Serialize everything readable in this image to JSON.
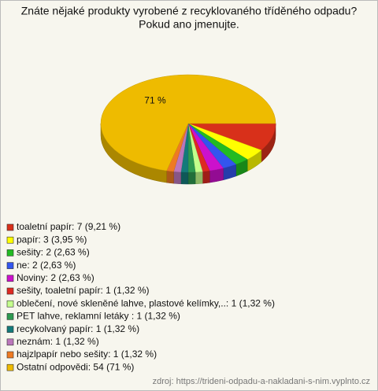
{
  "chart_data": {
    "type": "pie",
    "title": [
      "Znáte nějaké produkty vyrobené z recyklovaného tříděného odpadu?",
      "Pokud ano jmenujte."
    ],
    "categories": [
      "toaletní papír: 7 (9,21 %)",
      "papír: 3 (3,95 %)",
      "sešity: 2 (2,63 %)",
      "ne: 2 (2,63 %)",
      "Noviny: 2 (2,63 %)",
      "sešity, toaletní papír: 1 (1,32 %)",
      "oblečení, nové skleněné lahve, plastové kelímky,..: 1 (1,32 %)",
      "PET lahve, reklamní letáky : 1 (1,32 %)",
      "recykolvaný papír: 1 (1,32 %)",
      "neznám: 1 (1,32 %)",
      "hajzlpapír nebo sešity: 1 (1,32 %)",
      "Ostatní odpovědi: 54 (71 %)"
    ],
    "values": [
      9.21,
      3.95,
      2.63,
      2.63,
      2.63,
      1.32,
      1.32,
      1.32,
      1.32,
      1.32,
      1.32,
      71
    ],
    "value_labels": [
      null,
      null,
      null,
      null,
      null,
      null,
      null,
      null,
      null,
      null,
      null,
      "71 %"
    ],
    "colors": [
      "#d8301a",
      "#ffff00",
      "#22bb22",
      "#3355ee",
      "#cc11cc",
      "#dd2a22",
      "#c4ff8c",
      "#2e9a50",
      "#137a7a",
      "#bb77bb",
      "#ee7a22",
      "#eebb00"
    ],
    "source": "zdroj: https://trideni-odpadu-a-nakladani-s-nim.vyplnto.cz"
  }
}
